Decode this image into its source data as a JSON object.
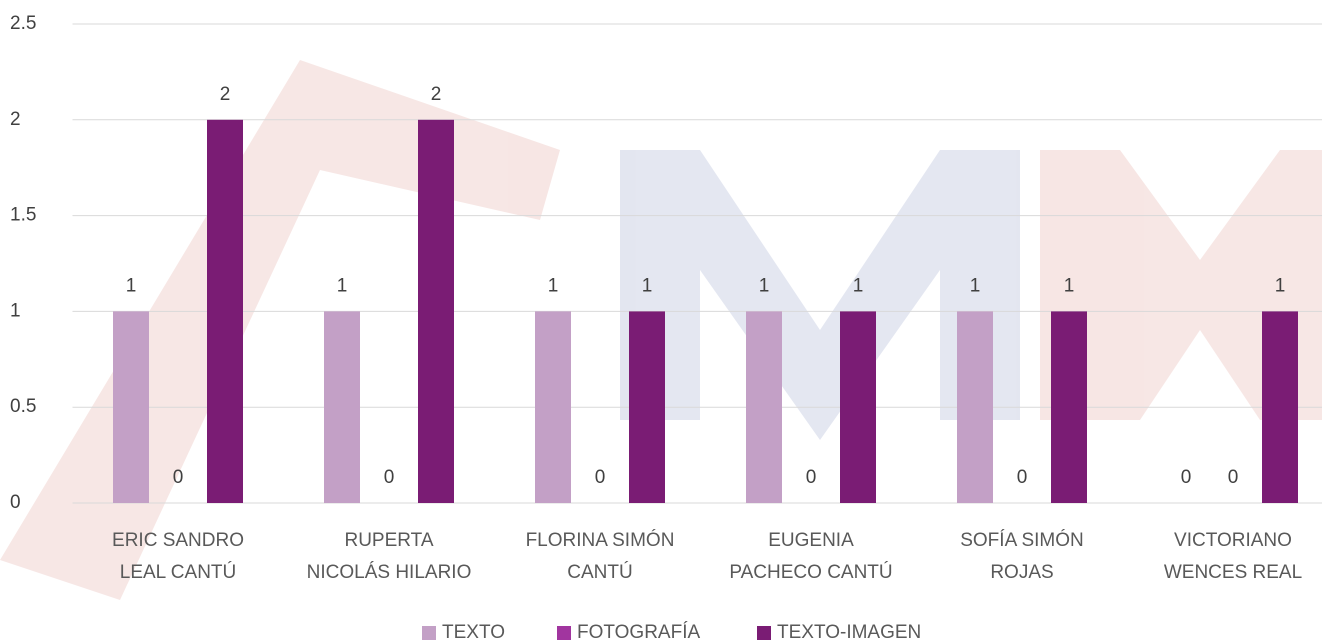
{
  "chart_data": {
    "type": "bar",
    "categories": [
      [
        "ERIC SANDRO",
        "LEAL CANTÚ"
      ],
      [
        "RUPERTA",
        "NICOLÁS HILARIO"
      ],
      [
        "FLORINA SIMÓN",
        "CANTÚ"
      ],
      [
        "EUGENIA",
        "PACHECO CANTÚ"
      ],
      [
        "SOFÍA SIMÓN",
        "ROJAS"
      ],
      [
        "VICTORIANO",
        "WENCES REAL"
      ]
    ],
    "series": [
      {
        "name": "TEXTO",
        "color": "#c3a0c6",
        "values": [
          1,
          1,
          1,
          1,
          1,
          0
        ]
      },
      {
        "name": "FOTOGRAFÍA",
        "color": "#a1359f",
        "values": [
          0,
          0,
          0,
          0,
          0,
          0
        ]
      },
      {
        "name": "TEXTO-IMAGEN",
        "color": "#7a1c74",
        "values": [
          2,
          2,
          1,
          1,
          1,
          1
        ]
      }
    ],
    "ylim": [
      0,
      2.5
    ],
    "yticks": [
      0,
      0.5,
      1,
      1.5,
      2,
      2.5
    ],
    "grid": true,
    "legend": "bottom"
  }
}
